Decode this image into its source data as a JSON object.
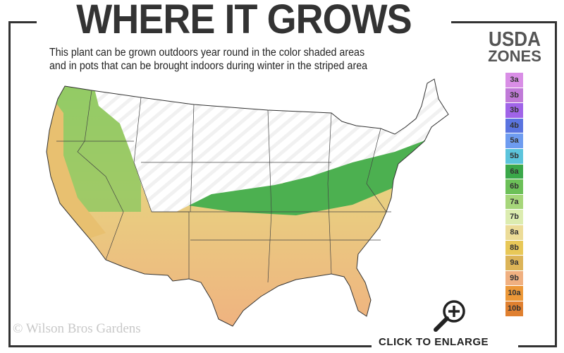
{
  "title": "WHERE IT GROWS",
  "subtitle_line1": "This plant can be grown outdoors year round in the color shaded areas",
  "subtitle_line2": "and in pots that can be brought indoors during winter in the striped area",
  "legend": {
    "title_line1": "USDA",
    "title_line2": "ZONES",
    "zones": [
      {
        "label": "3a",
        "color": "#d98ee6"
      },
      {
        "label": "3b",
        "color": "#c07ad8"
      },
      {
        "label": "3b",
        "color": "#a064e8"
      },
      {
        "label": "4b",
        "color": "#5a74e0"
      },
      {
        "label": "5a",
        "color": "#6e9cf0"
      },
      {
        "label": "5b",
        "color": "#5cc4dc"
      },
      {
        "label": "6a",
        "color": "#3aa84a"
      },
      {
        "label": "6b",
        "color": "#6cc058"
      },
      {
        "label": "7a",
        "color": "#a6d67a"
      },
      {
        "label": "7b",
        "color": "#dcecb0"
      },
      {
        "label": "8a",
        "color": "#ecdc98"
      },
      {
        "label": "8b",
        "color": "#e8c858"
      },
      {
        "label": "9a",
        "color": "#dcb458"
      },
      {
        "label": "9b",
        "color": "#f0b080"
      },
      {
        "label": "10a",
        "color": "#ec9838"
      },
      {
        "label": "10b",
        "color": "#e08030"
      }
    ]
  },
  "map": {
    "shaded_colors": [
      "#3aa84a",
      "#a6d67a",
      "#e8c858",
      "#f0b080"
    ],
    "striped_color": "#ffffff"
  },
  "copyright": "© Wilson Bros Gardens",
  "enlarge_label": "CLICK TO ENLARGE",
  "enlarge_icon": "magnifier-plus-icon"
}
